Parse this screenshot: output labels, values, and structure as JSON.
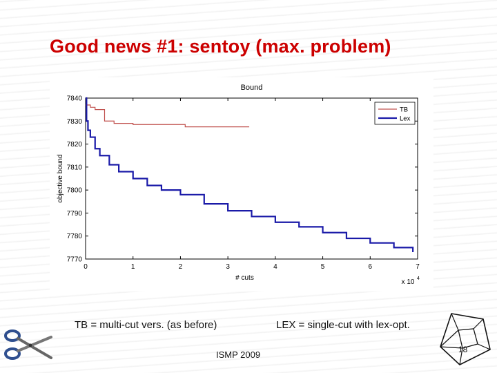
{
  "slide": {
    "title": "Good news #1: sentoy (max. problem)",
    "caption_left": "TB = multi-cut vers. (as before)",
    "caption_right": "LEX = single-cut with lex-opt.",
    "footer": "ISMP 2009",
    "page_number": "18"
  },
  "colors": {
    "title": "#cc0000",
    "tb_series": "#c0504d",
    "lex_series": "#1a1aa8"
  },
  "icons": [
    "scissors-icon",
    "hypercube-icon"
  ],
  "chart_data": {
    "type": "line",
    "title": "Bound",
    "xlabel": "# cuts",
    "ylabel": "objective bound",
    "x_multiplier_label": "x 10",
    "x_multiplier_exponent": "4",
    "xlim": [
      0,
      7
    ],
    "ylim": [
      7770,
      7840
    ],
    "xticks": [
      "0",
      "1",
      "2",
      "3",
      "4",
      "5",
      "6",
      "7"
    ],
    "yticks": [
      "7770",
      "7780",
      "7790",
      "7800",
      "7810",
      "7820",
      "7830",
      "7840"
    ],
    "grid": false,
    "legend_position": "top-right",
    "series": [
      {
        "name": "TB",
        "step": true,
        "x": [
          0,
          0.1,
          0.2,
          0.4,
          0.6,
          1.0,
          2.1,
          3.45
        ],
        "y": [
          7837,
          7836,
          7835,
          7830,
          7829,
          7828.5,
          7827.5,
          7827.5
        ]
      },
      {
        "name": "Lex",
        "step": true,
        "x": [
          0,
          0.02,
          0.05,
          0.1,
          0.2,
          0.3,
          0.5,
          0.7,
          1.0,
          1.3,
          1.6,
          2.0,
          2.5,
          3.0,
          3.5,
          4.0,
          4.5,
          5.0,
          5.5,
          6.0,
          6.5,
          6.9
        ],
        "y": [
          7840,
          7830,
          7826,
          7823,
          7818,
          7815,
          7811,
          7808,
          7805,
          7802,
          7800,
          7798,
          7794,
          7791,
          7788.5,
          7786,
          7784,
          7781.5,
          7779,
          7777,
          7775,
          7773
        ]
      }
    ]
  }
}
